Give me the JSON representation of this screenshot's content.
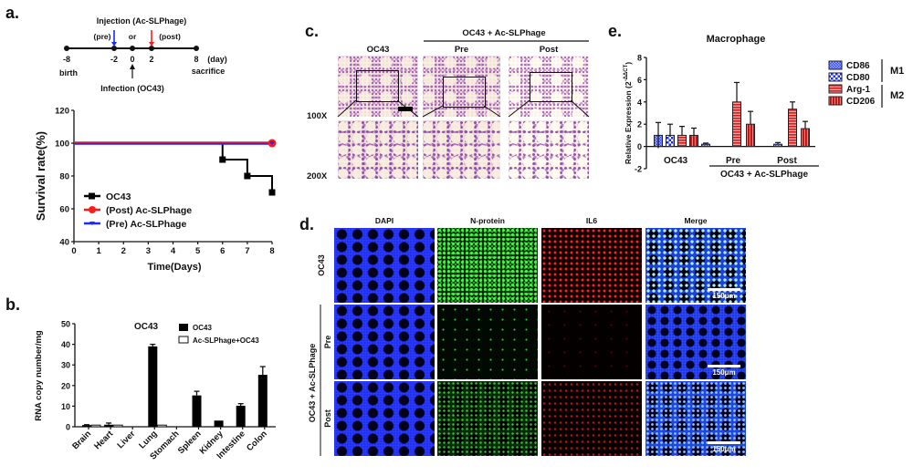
{
  "panels": {
    "a": "a.",
    "b": "b.",
    "c": "c.",
    "d": "d.",
    "e": "e."
  },
  "timeline": {
    "injection_label": "Injection (Ac-SLPhage)",
    "pre_label": "(pre)",
    "or_label": "or",
    "post_label": "(post)",
    "days": [
      "-8",
      "-2",
      "0",
      "2",
      "8"
    ],
    "day_unit": "(day)",
    "birth_label": "birth",
    "sacrifice_label": "sacrifice",
    "infection_label": "Infection (OC43)",
    "pre_color": "#1a2bff",
    "post_color": "#ff1a1a"
  },
  "chart_data": [
    {
      "id": "survival",
      "type": "line",
      "step": true,
      "title": "",
      "xlabel": "Time(Days)",
      "ylabel": "Survival rate(%)",
      "xlim": [
        0,
        8
      ],
      "ylim": [
        40,
        120
      ],
      "xticks": [
        "0",
        "1",
        "2",
        "3",
        "4",
        "5",
        "6",
        "7",
        "8"
      ],
      "yticks": [
        "40",
        "60",
        "80",
        "100",
        "120"
      ],
      "legend_position": "bottom-left",
      "series": [
        {
          "name": "OC43",
          "color": "#000000",
          "marker": "square",
          "x": [
            0,
            6,
            7,
            8
          ],
          "y": [
            100,
            90,
            80,
            70
          ]
        },
        {
          "name": "(Post) Ac-SLPhage",
          "color": "#ff1a1a",
          "marker": "circle",
          "x": [
            0,
            8
          ],
          "y": [
            100,
            100
          ]
        },
        {
          "name": "(Pre) Ac-SLPhage",
          "color": "#1a2bff",
          "marker": "triangle-down",
          "x": [
            0,
            8
          ],
          "y": [
            100,
            100
          ]
        }
      ]
    },
    {
      "id": "rna",
      "type": "bar",
      "title": "OC43",
      "xlabel": "",
      "ylabel": "RNA copy number/mg",
      "ylim": [
        0,
        50
      ],
      "yticks": [
        "0",
        "10",
        "20",
        "30",
        "40",
        "50"
      ],
      "legend_position": "top-right",
      "categories": [
        "Brain",
        "Heart",
        "Liver",
        "Lung",
        "Stomach",
        "Spleen",
        "Kidney",
        "Intestine",
        "Colon"
      ],
      "series": [
        {
          "name": "OC43",
          "color": "#000000",
          "values": [
            0.8,
            1.0,
            0,
            39,
            0,
            15.2,
            3,
            10.2,
            25.2
          ],
          "errors": [
            0.2,
            0.8,
            0,
            1.0,
            0,
            2,
            0,
            1,
            4
          ]
        },
        {
          "name": "Ac-SLPhage+OC43",
          "color": "#ffffff",
          "values": [
            0.8,
            0.8,
            0,
            0.8,
            0,
            0,
            0,
            0,
            0
          ],
          "errors": [
            0,
            0,
            0,
            0,
            0,
            0,
            0,
            0,
            0
          ]
        }
      ]
    },
    {
      "id": "macrophage",
      "type": "bar",
      "title": "Macrophage",
      "xlabel": "",
      "ylabel": "Relative Expression (2^-ΔΔCT)",
      "ylabel_main": "Relative Expression (2",
      "ylabel_sup": "-ΔΔCT",
      "ylabel_end": ")",
      "ylim": [
        -2,
        8
      ],
      "yticks": [
        "-2",
        "0",
        "2",
        "4",
        "6",
        "8"
      ],
      "legend_position": "right",
      "categories": [
        "OC43",
        "Pre",
        "Post"
      ],
      "group_label": "OC43 + Ac-SLPhage",
      "series": [
        {
          "name": "CD86",
          "group": "M1",
          "values": [
            1.0,
            0.2,
            0.2
          ],
          "errors": [
            1.15,
            0.1,
            0.15
          ]
        },
        {
          "name": "CD80",
          "group": "M1",
          "values": [
            1.0,
            0,
            0
          ],
          "errors": [
            1.0,
            0,
            0
          ]
        },
        {
          "name": "Arg-1",
          "group": "M2",
          "values": [
            1.0,
            4.0,
            3.35
          ],
          "errors": [
            0.8,
            1.75,
            0.65
          ]
        },
        {
          "name": "CD206",
          "group": "M2",
          "values": [
            1.0,
            2.0,
            1.6
          ],
          "errors": [
            0.65,
            1.15,
            0.65
          ]
        }
      ],
      "groups": [
        "M1",
        "M2"
      ]
    }
  ],
  "histology": {
    "header_group": "OC43 + Ac-SLPhage",
    "columns": [
      "OC43",
      "Pre",
      "Post"
    ],
    "rows": [
      "100X",
      "200X"
    ]
  },
  "fluorescence": {
    "columns": [
      "DAPI",
      "N-protein",
      "IL6",
      "Merge"
    ],
    "row_group": "OC43 + Ac-SLPhage",
    "rows": [
      "OC43",
      "Pre",
      "Post"
    ],
    "scale_bar": "150μm"
  }
}
